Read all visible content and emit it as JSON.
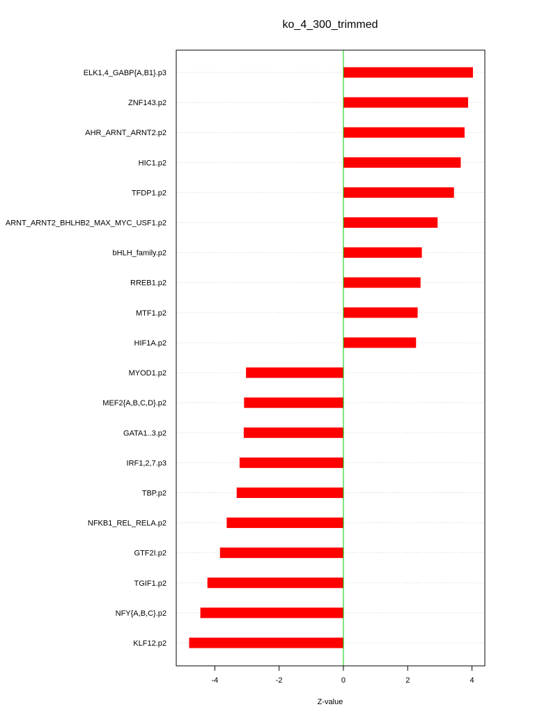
{
  "chart_data": {
    "type": "bar",
    "orientation": "horizontal",
    "title": "ko_4_300_trimmed",
    "xlabel": "Z-value",
    "ylabel": "",
    "xlim": [
      -5.2,
      4.4
    ],
    "xticks": [
      -4,
      -2,
      0,
      2,
      4
    ],
    "grid": "horizontal dotted",
    "zero_line_color": "#00cc00",
    "bar_color": "#ff0000",
    "categories": [
      "ELK1,4_GABP{A,B1}.p3",
      "ZNF143.p2",
      "AHR_ARNT_ARNT2.p2",
      "HIC1.p2",
      "TFDP1.p2",
      "ARNT_ARNT2_BHLHB2_MAX_MYC_USF1.p2",
      "bHLH_family.p2",
      "RREB1.p2",
      "MTF1.p2",
      "HIF1A.p2",
      "MYOD1.p2",
      "MEF2{A,B,C,D}.p2",
      "GATA1..3.p2",
      "IRF1,2,7.p3",
      "TBP.p2",
      "NFKB1_REL_RELA.p2",
      "GTF2I.p2",
      "TGIF1.p2",
      "NFY{A,B,C}.p2",
      "KLF12.p2"
    ],
    "values": [
      4.03,
      3.88,
      3.77,
      3.65,
      3.44,
      2.93,
      2.44,
      2.4,
      2.31,
      2.26,
      -3.03,
      -3.09,
      -3.1,
      -3.23,
      -3.32,
      -3.63,
      -3.84,
      -4.23,
      -4.45,
      -4.8
    ]
  }
}
